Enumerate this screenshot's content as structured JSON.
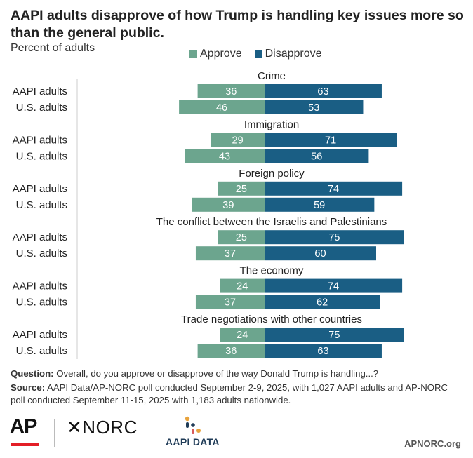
{
  "header": {
    "title": "AAPI adults disapprove of how Trump is handling key issues more so than the general public.",
    "subtitle": "Percent of adults"
  },
  "colors": {
    "approve": "#6ca58e",
    "disapprove": "#1a5e84",
    "text": "#222222",
    "axis": "#cccccc"
  },
  "chart_data": {
    "type": "bar",
    "orientation": "horizontal-diverging",
    "legend": [
      "Approve",
      "Disapprove"
    ],
    "legend_position": "top",
    "groups": [
      {
        "topic": "Crime",
        "rows": [
          {
            "label": "AAPI adults",
            "approve": 36,
            "disapprove": 63
          },
          {
            "label": "U.S. adults",
            "approve": 46,
            "disapprove": 53
          }
        ]
      },
      {
        "topic": "Immigration",
        "rows": [
          {
            "label": "AAPI adults",
            "approve": 29,
            "disapprove": 71
          },
          {
            "label": "U.S. adults",
            "approve": 43,
            "disapprove": 56
          }
        ]
      },
      {
        "topic": "Foreign policy",
        "rows": [
          {
            "label": "AAPI adults",
            "approve": 25,
            "disapprove": 74
          },
          {
            "label": "U.S. adults",
            "approve": 39,
            "disapprove": 59
          }
        ]
      },
      {
        "topic": "The conflict between the Israelis and Palestinians",
        "rows": [
          {
            "label": "AAPI adults",
            "approve": 25,
            "disapprove": 75
          },
          {
            "label": "U.S. adults",
            "approve": 37,
            "disapprove": 60
          }
        ]
      },
      {
        "topic": "The economy",
        "rows": [
          {
            "label": "AAPI adults",
            "approve": 24,
            "disapprove": 74
          },
          {
            "label": "U.S. adults",
            "approve": 37,
            "disapprove": 62
          }
        ]
      },
      {
        "topic": "Trade negotiations with other countries",
        "rows": [
          {
            "label": "AAPI adults",
            "approve": 24,
            "disapprove": 75
          },
          {
            "label": "U.S. adults",
            "approve": 36,
            "disapprove": 63
          }
        ]
      }
    ]
  },
  "notes": {
    "question_label": "Question:",
    "question_text": "Overall, do you approve or disapprove of the way Donald Trump is handling...?",
    "source_label": "Source:",
    "source_text": "AAPI Data/AP-NORC poll conducted September 2-9, 2025, with 1,027 AAPI adults and AP-NORC poll conducted September 11-15, 2025 with 1,183 adults nationwide."
  },
  "footer": {
    "ap_logo": "AP",
    "norc_logo": "NORC",
    "aapi_logo": "AAPI DATA",
    "site": "APNORC.org"
  }
}
